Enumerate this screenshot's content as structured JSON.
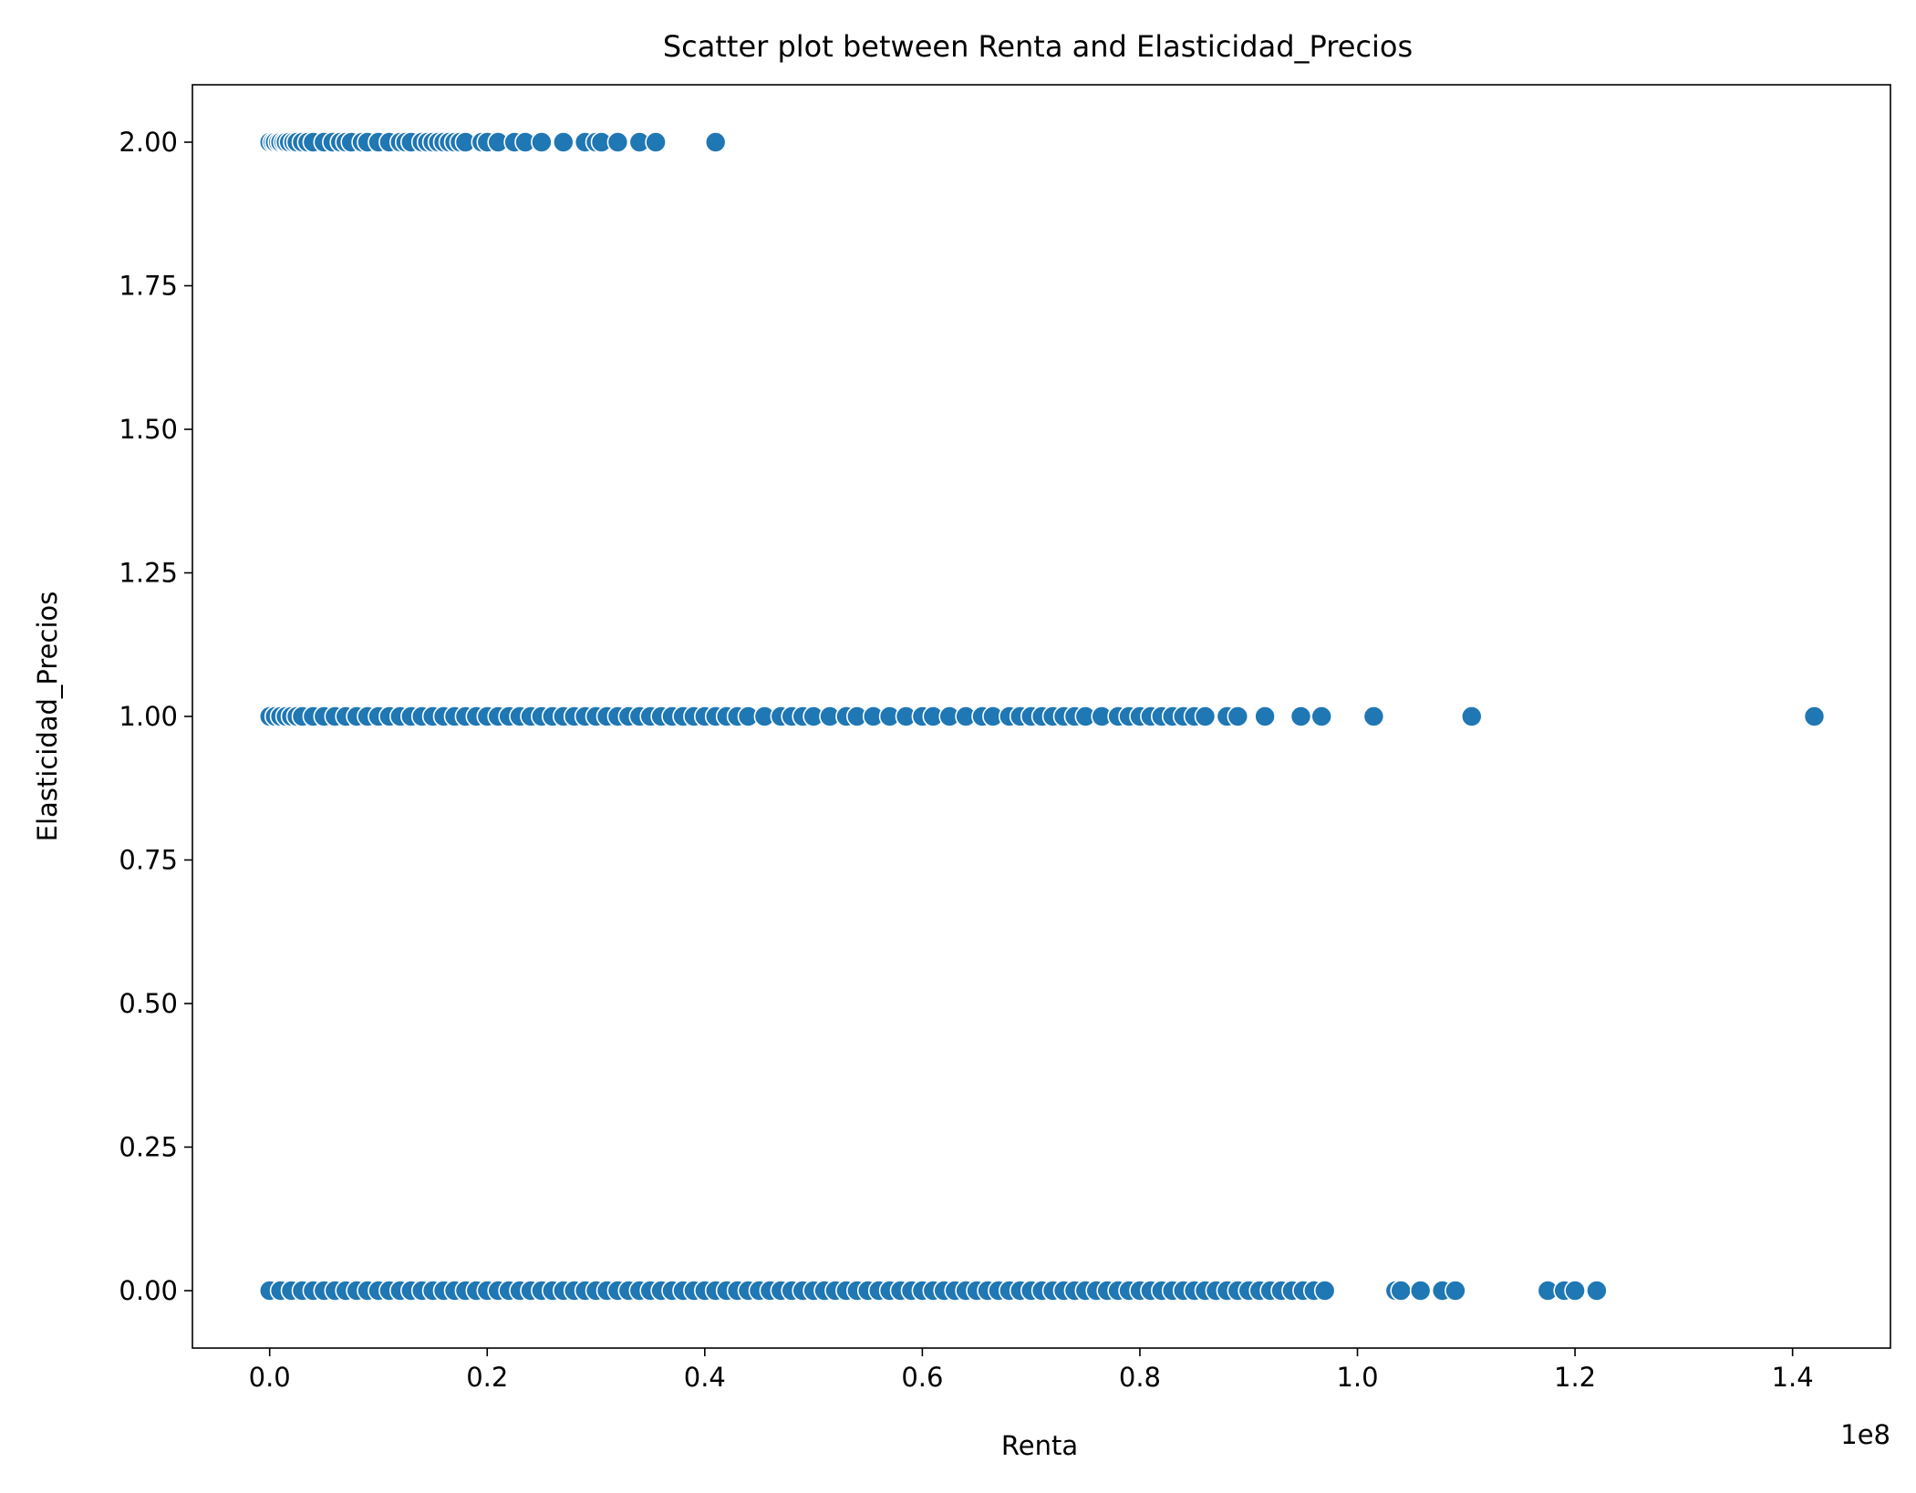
{
  "chart_data": {
    "type": "scatter",
    "title": "Scatter plot between Renta and Elasticidad_Precios",
    "xlabel": "Renta",
    "ylabel": "Elasticidad_Precios",
    "x_offset_text": "1e8",
    "xlim": [
      -0.071,
      1.49
    ],
    "ylim": [
      -0.1,
      2.1
    ],
    "xticks": [
      0.0,
      0.2,
      0.4,
      0.6,
      0.8,
      1.0,
      1.2,
      1.4
    ],
    "xtick_labels": [
      "0.0",
      "0.2",
      "0.4",
      "0.6",
      "0.8",
      "1.0",
      "1.2",
      "1.4"
    ],
    "yticks": [
      0.0,
      0.25,
      0.5,
      0.75,
      1.0,
      1.25,
      1.5,
      1.75,
      2.0
    ],
    "ytick_labels": [
      "0.00",
      "0.25",
      "0.50",
      "0.75",
      "1.00",
      "1.25",
      "1.50",
      "1.75",
      "2.00"
    ],
    "grid": false,
    "marker_color": "#1f77b4",
    "series": [
      {
        "y": 2,
        "x": [
          0.0,
          0.003,
          0.005,
          0.008,
          0.01,
          0.013,
          0.015,
          0.018,
          0.022,
          0.025,
          0.03,
          0.035,
          0.04,
          0.05,
          0.058,
          0.065,
          0.07,
          0.075,
          0.085,
          0.09,
          0.1,
          0.11,
          0.12,
          0.125,
          0.13,
          0.14,
          0.145,
          0.15,
          0.155,
          0.16,
          0.165,
          0.17,
          0.175,
          0.18,
          0.195,
          0.2,
          0.21,
          0.225,
          0.235,
          0.25,
          0.27,
          0.29,
          0.3,
          0.305,
          0.32,
          0.34,
          0.355,
          0.41
        ]
      },
      {
        "y": 1,
        "x": [
          0.0,
          0.005,
          0.01,
          0.015,
          0.02,
          0.025,
          0.03,
          0.04,
          0.05,
          0.06,
          0.07,
          0.08,
          0.09,
          0.1,
          0.11,
          0.12,
          0.13,
          0.14,
          0.15,
          0.16,
          0.17,
          0.18,
          0.19,
          0.2,
          0.21,
          0.22,
          0.23,
          0.24,
          0.25,
          0.26,
          0.27,
          0.28,
          0.29,
          0.3,
          0.31,
          0.32,
          0.33,
          0.34,
          0.35,
          0.36,
          0.37,
          0.38,
          0.39,
          0.4,
          0.41,
          0.42,
          0.43,
          0.44,
          0.455,
          0.47,
          0.48,
          0.49,
          0.5,
          0.515,
          0.53,
          0.54,
          0.555,
          0.57,
          0.585,
          0.6,
          0.61,
          0.625,
          0.64,
          0.655,
          0.665,
          0.68,
          0.69,
          0.7,
          0.71,
          0.72,
          0.73,
          0.74,
          0.75,
          0.765,
          0.78,
          0.79,
          0.8,
          0.81,
          0.82,
          0.83,
          0.84,
          0.85,
          0.86,
          0.88,
          0.89,
          0.915,
          0.948,
          0.967,
          1.015,
          1.105,
          1.42
        ]
      },
      {
        "y": 0,
        "x": [
          0.0,
          0.01,
          0.02,
          0.03,
          0.04,
          0.05,
          0.06,
          0.07,
          0.08,
          0.09,
          0.1,
          0.11,
          0.12,
          0.13,
          0.14,
          0.15,
          0.16,
          0.17,
          0.18,
          0.19,
          0.2,
          0.21,
          0.22,
          0.23,
          0.24,
          0.25,
          0.26,
          0.27,
          0.28,
          0.29,
          0.3,
          0.31,
          0.32,
          0.33,
          0.34,
          0.35,
          0.36,
          0.37,
          0.38,
          0.39,
          0.4,
          0.41,
          0.42,
          0.43,
          0.44,
          0.45,
          0.46,
          0.47,
          0.48,
          0.49,
          0.5,
          0.51,
          0.52,
          0.53,
          0.54,
          0.55,
          0.56,
          0.57,
          0.58,
          0.59,
          0.6,
          0.61,
          0.62,
          0.63,
          0.64,
          0.65,
          0.66,
          0.67,
          0.68,
          0.69,
          0.7,
          0.71,
          0.72,
          0.73,
          0.74,
          0.75,
          0.76,
          0.77,
          0.78,
          0.79,
          0.8,
          0.81,
          0.82,
          0.83,
          0.84,
          0.85,
          0.86,
          0.87,
          0.88,
          0.89,
          0.9,
          0.91,
          0.92,
          0.93,
          0.94,
          0.95,
          0.96,
          0.97,
          1.035,
          1.04,
          1.058,
          1.078,
          1.09,
          1.175,
          1.19,
          1.2,
          1.22
        ]
      }
    ]
  }
}
